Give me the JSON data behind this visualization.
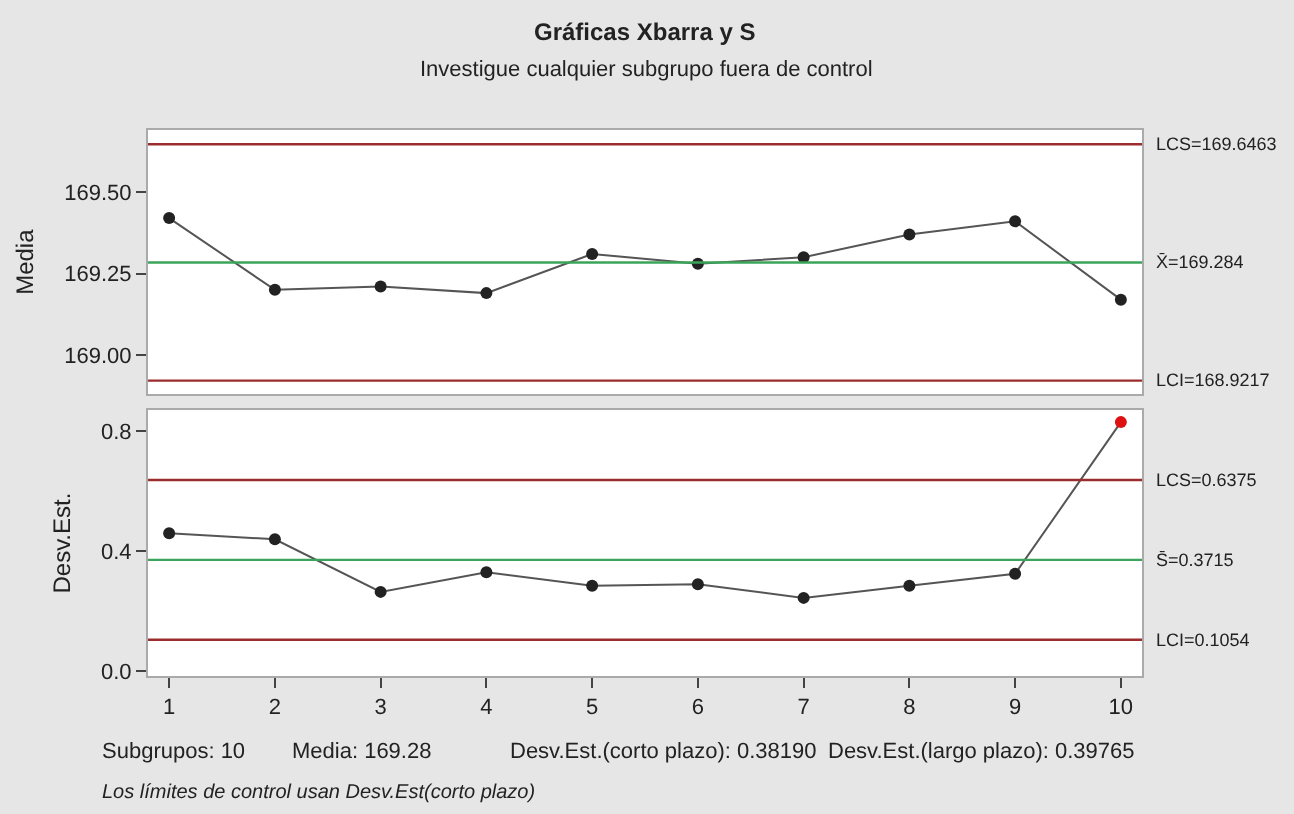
{
  "chart_data": [
    {
      "type": "line",
      "title": "Gráficas Xbarra y S",
      "subtitle": "Investigue cualquier subgrupo fuera de control",
      "ylabel": "Media",
      "x": [
        1,
        2,
        3,
        4,
        5,
        6,
        7,
        8,
        9,
        10
      ],
      "xlim": [
        0.8,
        10.2
      ],
      "xticks": [
        1,
        2,
        3,
        4,
        5,
        6,
        7,
        8,
        9,
        10
      ],
      "ylim": [
        168.88,
        169.69
      ],
      "yticks": [
        {
          "value": 169.0,
          "label": "169.00"
        },
        {
          "value": 169.25,
          "label": "169.25"
        },
        {
          "value": 169.5,
          "label": "169.50"
        }
      ],
      "tick_labels": "y",
      "marker": "circle",
      "line_style": "solid",
      "series": [
        {
          "color": "#555555",
          "colors": [
            "#222222",
            "#222222",
            "#222222",
            "#222222",
            "#222222",
            "#222222",
            "#222222",
            "#222222",
            "#222222",
            "#222222"
          ],
          "values": [
            169.42,
            169.2,
            169.21,
            169.19,
            169.31,
            169.28,
            169.3,
            169.37,
            169.41,
            169.17
          ]
        }
      ],
      "ref_lines": [
        {
          "axis": "y",
          "value": 169.6463,
          "label": "LCS=169.6463",
          "color": "#9b2d2d"
        },
        {
          "axis": "y",
          "value": 169.284,
          "label": "X̄=169.284",
          "color": "#3aa55a"
        },
        {
          "axis": "y",
          "value": 168.9217,
          "label": "LCI=168.9217",
          "color": "#9b2d2d"
        }
      ]
    },
    {
      "type": "line",
      "ylabel": "Desv.Est.",
      "x": [
        1,
        2,
        3,
        4,
        5,
        6,
        7,
        8,
        9,
        10
      ],
      "xlim": [
        0.8,
        10.2
      ],
      "xticks": [
        1,
        2,
        3,
        4,
        5,
        6,
        7,
        8,
        9,
        10
      ],
      "ylim": [
        -0.015,
        0.87
      ],
      "yticks": [
        {
          "value": 0.0,
          "label": "0.0"
        },
        0.4,
        0.8
      ],
      "marker": "circle",
      "line_style": "solid",
      "series": [
        {
          "color": "#555555",
          "colors": [
            "#222222",
            "#222222",
            "#222222",
            "#222222",
            "#222222",
            "#222222",
            "#222222",
            "#222222",
            "#222222",
            "#dd1111"
          ],
          "values": [
            0.46,
            0.44,
            0.265,
            0.33,
            0.285,
            0.29,
            0.245,
            0.285,
            0.325,
            0.83
          ]
        }
      ],
      "ref_lines": [
        {
          "axis": "y",
          "value": 0.6375,
          "label": "LCS=0.6375",
          "color": "#9b2d2d"
        },
        {
          "axis": "y",
          "value": 0.3715,
          "label": "S̄=0.3715",
          "color": "#3aa55a"
        },
        {
          "axis": "y",
          "value": 0.1054,
          "label": "LCI=0.1054",
          "color": "#9b2d2d"
        }
      ],
      "annotations": [
        "Subgrupos: 10",
        "Media: 169.28",
        "Desv.Est.(corto plazo): 0.38190",
        "Desv.Est.(largo plazo): 0.39765",
        "Los límites de control usan Desv.Est(corto plazo)"
      ]
    }
  ]
}
